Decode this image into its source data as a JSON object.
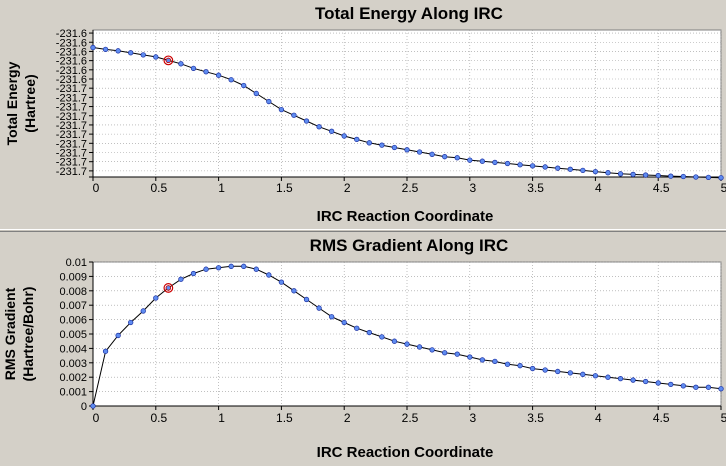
{
  "chart_data": [
    {
      "type": "line",
      "title": "Total Energy Along IRC",
      "xlabel": "IRC Reaction Coordinate",
      "ylabel_lines": [
        "Total Energy",
        "(Hartree)"
      ],
      "xlim": [
        0,
        5
      ],
      "ylim": [
        -231.7025,
        -231.5825
      ],
      "xticks": [
        0,
        0.5,
        1,
        1.5,
        2,
        2.5,
        3,
        3.5,
        4,
        4.5,
        5
      ],
      "xtick_labels": [
        "0",
        "0.5",
        "1",
        "1.5",
        "2",
        "2.5",
        "3",
        "3.5",
        "4",
        "4.5",
        "5"
      ],
      "yticks": [
        -231.585,
        -231.5925,
        -231.6,
        -231.6075,
        -231.615,
        -231.6225,
        -231.63,
        -231.6375,
        -231.645,
        -231.6525,
        -231.66,
        -231.6675,
        -231.675,
        -231.6825,
        -231.69,
        -231.6975
      ],
      "ytick_labels": [
        "-231.6",
        "-231.6",
        "-231.6",
        "-231.6",
        "-231.6",
        "-231.6",
        "-231.7",
        "-231.7",
        "-231.7",
        "-231.7",
        "-231.7",
        "-231.7",
        "-231.7",
        "-231.7",
        "-231.7",
        "-231.7"
      ],
      "x": [
        0,
        0.1,
        0.2,
        0.3,
        0.4,
        0.5,
        0.6,
        0.7,
        0.8,
        0.9,
        1.0,
        1.1,
        1.2,
        1.3,
        1.4,
        1.5,
        1.6,
        1.7,
        1.8,
        1.9,
        2.0,
        2.1,
        2.2,
        2.3,
        2.4,
        2.5,
        2.6,
        2.7,
        2.8,
        2.9,
        3.0,
        3.1,
        3.2,
        3.3,
        3.4,
        3.5,
        3.6,
        3.7,
        3.8,
        3.9,
        4.0,
        4.1,
        4.2,
        4.3,
        4.4,
        4.5,
        4.6,
        4.7,
        4.8,
        4.9,
        5.0
      ],
      "y": [
        -231.5968,
        -231.5983,
        -231.5995,
        -231.6011,
        -231.6028,
        -231.6045,
        -231.6073,
        -231.6101,
        -231.6138,
        -231.6166,
        -231.6194,
        -231.6231,
        -231.6278,
        -231.6343,
        -231.6409,
        -231.6475,
        -231.6521,
        -231.6568,
        -231.6615,
        -231.6652,
        -231.669,
        -231.6718,
        -231.6746,
        -231.6765,
        -231.6784,
        -231.6803,
        -231.6821,
        -231.684,
        -231.6859,
        -231.6868,
        -231.6887,
        -231.6896,
        -231.6906,
        -231.6915,
        -231.6925,
        -231.6934,
        -231.6943,
        -231.6953,
        -231.6962,
        -231.6971,
        -231.6981,
        -231.699,
        -231.6999,
        -231.7004,
        -231.7009,
        -231.7013,
        -231.7018,
        -231.7021,
        -231.7025,
        -231.7028,
        -231.7031
      ],
      "highlight_index": 6,
      "grid": true,
      "line_color": "#000000",
      "marker_fill": "#5f8cf0",
      "marker_stroke": "#1a2ea0",
      "highlight_color": "#cc0000"
    },
    {
      "type": "line",
      "title": "RMS Gradient Along IRC",
      "xlabel": "IRC Reaction Coordinate",
      "ylabel_lines": [
        "RMS Gradient",
        "(Hartree/Bohr)"
      ],
      "xlim": [
        0,
        5
      ],
      "ylim": [
        0,
        0.01
      ],
      "xticks": [
        0,
        0.5,
        1,
        1.5,
        2,
        2.5,
        3,
        3.5,
        4,
        4.5,
        5
      ],
      "xtick_labels": [
        "0",
        "0.5",
        "1",
        "1.5",
        "2",
        "2.5",
        "3",
        "3.5",
        "4",
        "4.5",
        "5"
      ],
      "yticks": [
        0,
        0.001,
        0.002,
        0.003,
        0.004,
        0.005,
        0.006,
        0.007,
        0.008,
        0.009,
        0.01
      ],
      "ytick_labels": [
        "0",
        "0.001",
        "0.002",
        "0.003",
        "0.004",
        "0.005",
        "0.006",
        "0.007",
        "0.008",
        "0.009",
        "0.01"
      ],
      "x": [
        0,
        0.1,
        0.2,
        0.3,
        0.4,
        0.5,
        0.6,
        0.7,
        0.8,
        0.9,
        1.0,
        1.1,
        1.2,
        1.3,
        1.4,
        1.5,
        1.6,
        1.7,
        1.8,
        1.9,
        2.0,
        2.1,
        2.2,
        2.3,
        2.4,
        2.5,
        2.6,
        2.7,
        2.8,
        2.9,
        3.0,
        3.1,
        3.2,
        3.3,
        3.4,
        3.5,
        3.6,
        3.7,
        3.8,
        3.9,
        4.0,
        4.1,
        4.2,
        4.3,
        4.4,
        4.5,
        4.6,
        4.7,
        4.8,
        4.9,
        5.0
      ],
      "y": [
        0.0,
        0.0038,
        0.0049,
        0.0058,
        0.0066,
        0.0075,
        0.0082,
        0.0088,
        0.0092,
        0.0095,
        0.0096,
        0.0097,
        0.0097,
        0.0095,
        0.0091,
        0.0086,
        0.008,
        0.0074,
        0.0068,
        0.0062,
        0.0058,
        0.0054,
        0.0051,
        0.0048,
        0.0045,
        0.0043,
        0.0041,
        0.0039,
        0.0037,
        0.0036,
        0.0034,
        0.0032,
        0.0031,
        0.0029,
        0.0028,
        0.0026,
        0.0025,
        0.0024,
        0.0023,
        0.0022,
        0.0021,
        0.002,
        0.0019,
        0.0018,
        0.0017,
        0.0016,
        0.0015,
        0.0014,
        0.0013,
        0.0013,
        0.0012
      ],
      "highlight_index": 6,
      "grid": true,
      "line_color": "#000000",
      "marker_fill": "#5f8cf0",
      "marker_stroke": "#1a2ea0",
      "highlight_color": "#cc0000"
    }
  ]
}
